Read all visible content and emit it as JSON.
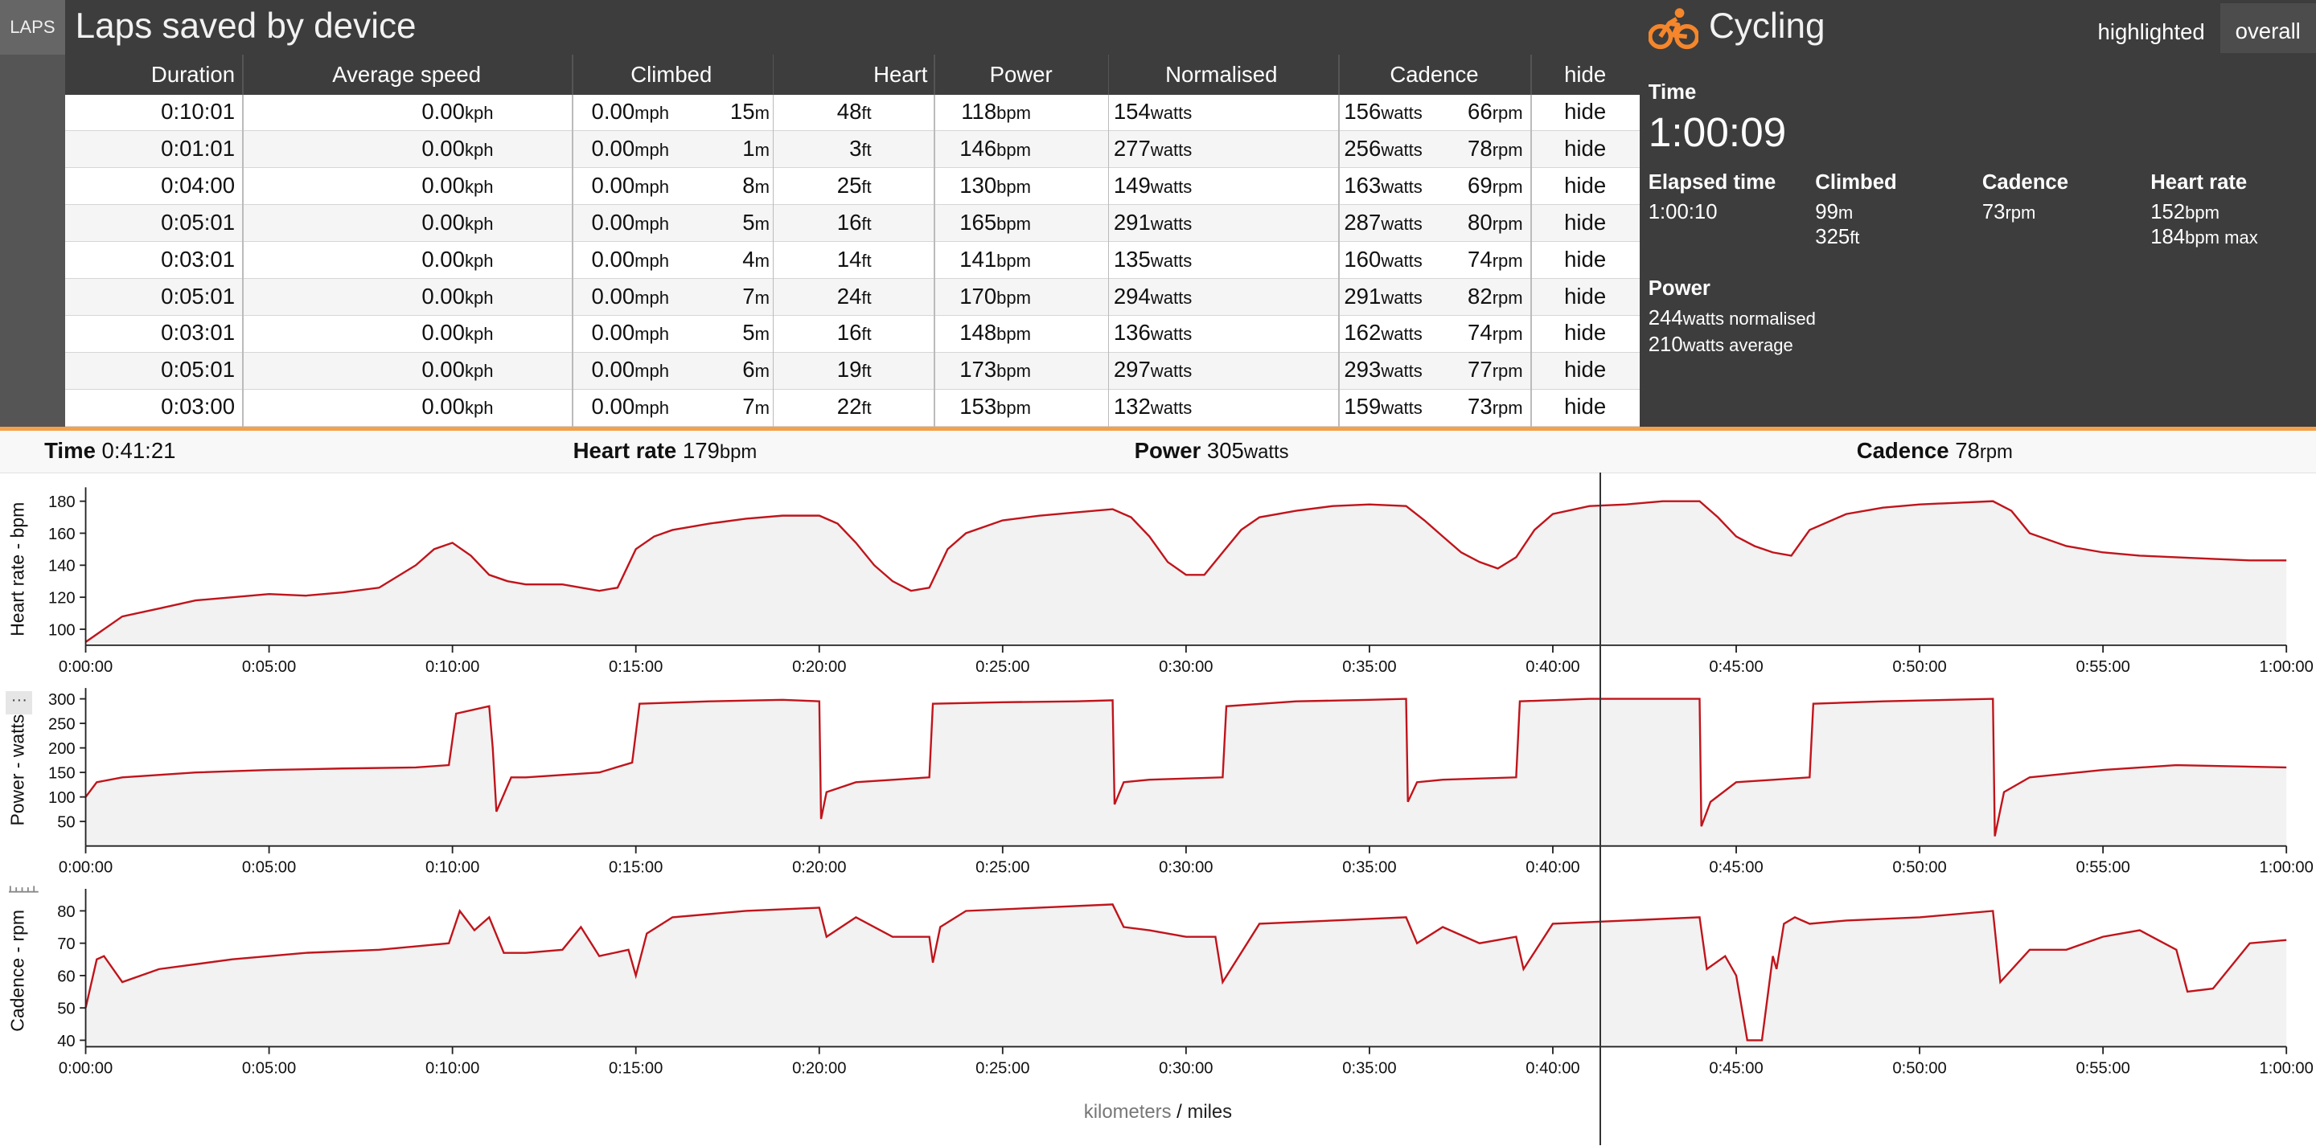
{
  "laps_tab": "LAPS",
  "title": "Laps saved by device",
  "table": {
    "headers": [
      "Duration",
      "Average speed",
      "Climbed",
      "Heart",
      "Power",
      "Normalised",
      "Cadence",
      "hide"
    ],
    "rows": [
      {
        "duration": "0:10:01",
        "kph": "0.00",
        "mph": "0.00",
        "m": "15",
        "ft": "48",
        "bpm": "118",
        "watts": "154",
        "norm": "156",
        "rpm": "66",
        "hide": "hide"
      },
      {
        "duration": "0:01:01",
        "kph": "0.00",
        "mph": "0.00",
        "m": "1",
        "ft": "3",
        "bpm": "146",
        "watts": "277",
        "norm": "256",
        "rpm": "78",
        "hide": "hide"
      },
      {
        "duration": "0:04:00",
        "kph": "0.00",
        "mph": "0.00",
        "m": "8",
        "ft": "25",
        "bpm": "130",
        "watts": "149",
        "norm": "163",
        "rpm": "69",
        "hide": "hide"
      },
      {
        "duration": "0:05:01",
        "kph": "0.00",
        "mph": "0.00",
        "m": "5",
        "ft": "16",
        "bpm": "165",
        "watts": "291",
        "norm": "287",
        "rpm": "80",
        "hide": "hide"
      },
      {
        "duration": "0:03:01",
        "kph": "0.00",
        "mph": "0.00",
        "m": "4",
        "ft": "14",
        "bpm": "141",
        "watts": "135",
        "norm": "160",
        "rpm": "74",
        "hide": "hide"
      },
      {
        "duration": "0:05:01",
        "kph": "0.00",
        "mph": "0.00",
        "m": "7",
        "ft": "24",
        "bpm": "170",
        "watts": "294",
        "norm": "291",
        "rpm": "82",
        "hide": "hide"
      },
      {
        "duration": "0:03:01",
        "kph": "0.00",
        "mph": "0.00",
        "m": "5",
        "ft": "16",
        "bpm": "148",
        "watts": "136",
        "norm": "162",
        "rpm": "74",
        "hide": "hide"
      },
      {
        "duration": "0:05:01",
        "kph": "0.00",
        "mph": "0.00",
        "m": "6",
        "ft": "19",
        "bpm": "173",
        "watts": "297",
        "norm": "293",
        "rpm": "77",
        "hide": "hide"
      },
      {
        "duration": "0:03:00",
        "kph": "0.00",
        "mph": "0.00",
        "m": "7",
        "ft": "22",
        "bpm": "153",
        "watts": "132",
        "norm": "159",
        "rpm": "73",
        "hide": "hide"
      }
    ],
    "units": {
      "kph": "kph",
      "mph": "mph",
      "m": "m",
      "ft": "ft",
      "bpm": "bpm",
      "watts": "watts",
      "rpm": "rpm"
    }
  },
  "summary": {
    "activity": "Cycling",
    "icon": "cycling-icon",
    "accent": "#f5862b",
    "buttons": {
      "highlighted": "highlighted",
      "overall": "overall"
    },
    "time_label": "Time",
    "time_value": "1:00:09",
    "elapsed_label": "Elapsed time",
    "elapsed_value": "1:00:10",
    "climbed_label": "Climbed",
    "climbed_m": "99",
    "climbed_ft": "325",
    "cadence_label": "Cadence",
    "cadence_value": "73",
    "heart_label": "Heart rate",
    "heart_value": "152",
    "heart_max": "184",
    "heart_max_unit": "bpm max",
    "power_label": "Power",
    "power_norm": "244",
    "power_norm_unit": "watts normalised",
    "power_avg": "210",
    "power_avg_unit": "watts average"
  },
  "readout": {
    "time_label": "Time",
    "time_value": "0:41:21",
    "heart_label": "Heart rate",
    "heart_value": "179",
    "heart_unit": "bpm",
    "power_label": "Power",
    "power_value": "305",
    "power_unit": "watts",
    "cadence_label": "Cadence",
    "cadence_value": "78",
    "cadence_unit": "rpm"
  },
  "more_button": "···",
  "units_toggle": {
    "km": "kilometers",
    "sep": "/",
    "mi": "miles"
  },
  "chart_data": [
    {
      "type": "area",
      "ylabel": "Heart rate - bpm",
      "ylim": [
        90,
        185
      ],
      "yticks": [
        100,
        120,
        140,
        160,
        180
      ],
      "xlim": [
        0,
        60
      ],
      "xticks": [
        "0:00:00",
        "0:05:00",
        "0:10:00",
        "0:15:00",
        "0:20:00",
        "0:25:00",
        "0:30:00",
        "0:35:00",
        "0:40:00",
        "0:45:00",
        "0:50:00",
        "0:55:00",
        "1:00:00"
      ],
      "line_color": "#c0141b",
      "fill_color": "#f2f2f2",
      "x": [
        0,
        1,
        2,
        3,
        4,
        5,
        6,
        7,
        8,
        9,
        9.5,
        10,
        10.5,
        11,
        11.5,
        12,
        13,
        14,
        14.5,
        15,
        15.5,
        16,
        17,
        18,
        19,
        20,
        20.5,
        21,
        21.5,
        22,
        22.5,
        23,
        23.5,
        24,
        25,
        26,
        27,
        28,
        28.5,
        29,
        29.5,
        30,
        30.5,
        31,
        31.5,
        32,
        33,
        34,
        35,
        36,
        36.5,
        37,
        37.5,
        38,
        38.5,
        39,
        39.5,
        40,
        41,
        42,
        43,
        44,
        44.5,
        45,
        45.5,
        46,
        46.5,
        47,
        48,
        49,
        50,
        51,
        52,
        52.5,
        53,
        54,
        55,
        56,
        57,
        58,
        59,
        60
      ],
      "y": [
        92,
        108,
        113,
        118,
        120,
        122,
        121,
        123,
        126,
        140,
        150,
        154,
        146,
        134,
        130,
        128,
        128,
        124,
        126,
        150,
        158,
        162,
        166,
        169,
        171,
        171,
        166,
        154,
        140,
        130,
        124,
        126,
        150,
        160,
        168,
        171,
        173,
        175,
        170,
        158,
        142,
        134,
        134,
        148,
        162,
        170,
        174,
        177,
        178,
        177,
        168,
        158,
        148,
        142,
        138,
        145,
        162,
        172,
        177,
        178,
        180,
        180,
        170,
        158,
        152,
        148,
        146,
        162,
        172,
        176,
        178,
        179,
        180,
        174,
        160,
        152,
        148,
        146,
        145,
        144,
        143,
        143
      ]
    },
    {
      "type": "area",
      "ylabel": "Power - watts",
      "ylim": [
        0,
        310
      ],
      "yticks": [
        50,
        100,
        150,
        200,
        250,
        300
      ],
      "xlim": [
        0,
        60
      ],
      "xticks": [
        "0:00:00",
        "0:05:00",
        "0:10:00",
        "0:15:00",
        "0:20:00",
        "0:25:00",
        "0:30:00",
        "0:35:00",
        "0:40:00",
        "0:45:00",
        "0:50:00",
        "0:55:00",
        "1:00:00"
      ],
      "line_color": "#c0141b",
      "fill_color": "#f2f2f2",
      "x": [
        0,
        0.3,
        1,
        3,
        5,
        7,
        9,
        9.9,
        10.1,
        11,
        11.1,
        11.2,
        11.6,
        12,
        14,
        14.9,
        15.1,
        17,
        19,
        20,
        20.05,
        20.2,
        21,
        23,
        23.1,
        25,
        27,
        28,
        28.05,
        28.3,
        29,
        31,
        31.1,
        33,
        35,
        36,
        36.05,
        36.3,
        37,
        39,
        39.1,
        41,
        43,
        44,
        44.05,
        44.3,
        45,
        47,
        47.1,
        49,
        52,
        52.05,
        52.3,
        53,
        55,
        57,
        60
      ],
      "y": [
        100,
        130,
        140,
        150,
        155,
        158,
        160,
        165,
        270,
        285,
        200,
        70,
        140,
        140,
        150,
        170,
        290,
        295,
        298,
        295,
        55,
        110,
        130,
        140,
        290,
        293,
        295,
        297,
        85,
        130,
        135,
        140,
        285,
        295,
        298,
        300,
        90,
        130,
        135,
        140,
        295,
        300,
        300,
        300,
        40,
        90,
        130,
        140,
        290,
        295,
        300,
        20,
        110,
        140,
        155,
        165,
        160
      ]
    },
    {
      "type": "area",
      "ylabel": "Cadence - rpm",
      "ylim": [
        38,
        85
      ],
      "yticks": [
        40,
        50,
        60,
        70,
        80
      ],
      "xlim": [
        0,
        60
      ],
      "xticks": [
        "0:00:00",
        "0:05:00",
        "0:10:00",
        "0:15:00",
        "0:20:00",
        "0:25:00",
        "0:30:00",
        "0:35:00",
        "0:40:00",
        "0:45:00",
        "0:50:00",
        "0:55:00",
        "1:00:00"
      ],
      "line_color": "#c0141b",
      "fill_color": "#f2f2f2",
      "x": [
        0,
        0.3,
        0.5,
        1,
        2,
        4,
        6,
        8,
        9.9,
        10.2,
        10.6,
        11,
        11.4,
        12,
        13,
        13.5,
        14,
        14.8,
        15,
        15.3,
        16,
        18,
        20,
        20.2,
        21,
        22,
        23,
        23.1,
        23.3,
        24,
        26,
        28,
        28.3,
        29,
        30,
        30.8,
        31,
        32,
        34,
        36,
        36.3,
        37,
        38,
        39,
        39.2,
        40,
        42,
        44,
        44.2,
        44.7,
        45,
        45.3,
        45.7,
        46,
        46.1,
        46.3,
        46.6,
        47,
        48,
        50,
        52,
        52.2,
        53,
        54,
        55,
        56,
        57,
        57.3,
        58,
        59,
        60
      ],
      "y": [
        50,
        65,
        66,
        58,
        62,
        65,
        67,
        68,
        70,
        80,
        74,
        78,
        67,
        67,
        68,
        75,
        66,
        68,
        60,
        73,
        78,
        80,
        81,
        72,
        78,
        72,
        72,
        64,
        75,
        80,
        81,
        82,
        75,
        74,
        72,
        72,
        58,
        76,
        77,
        78,
        70,
        75,
        70,
        72,
        62,
        76,
        77,
        78,
        62,
        66,
        60,
        40,
        40,
        66,
        62,
        76,
        78,
        76,
        77,
        78,
        80,
        58,
        68,
        68,
        72,
        74,
        68,
        55,
        56,
        70,
        71
      ]
    }
  ]
}
